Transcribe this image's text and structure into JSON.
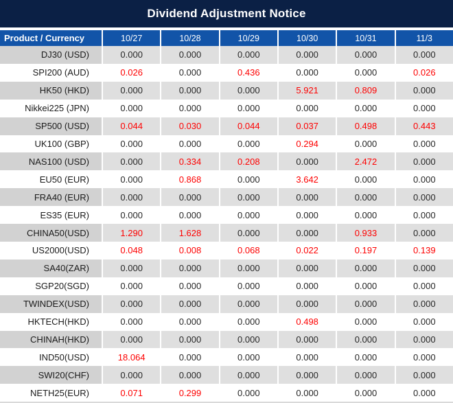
{
  "title": "Dividend Adjustment Notice",
  "colors": {
    "title_bar_bg": "#0b2045",
    "header_bg": "#1254a8",
    "stripe_label_col": "#d2d2d2",
    "stripe_value_cells": "#dfdfdf",
    "value_text": "#262626",
    "nonzero_value_red": "#fe0000",
    "header_text": "#ffffff"
  },
  "table": {
    "header": {
      "product_col": "Product / Currency",
      "dates": [
        "10/27",
        "10/28",
        "10/29",
        "10/30",
        "10/31",
        "11/3"
      ]
    },
    "rows": [
      {
        "product": "DJ30 (USD)",
        "values": [
          "0.000",
          "0.000",
          "0.000",
          "0.000",
          "0.000",
          "0.000"
        ]
      },
      {
        "product": "SPI200 (AUD)",
        "values": [
          "0.026",
          "0.000",
          "0.436",
          "0.000",
          "0.000",
          "0.026"
        ]
      },
      {
        "product": "HK50 (HKD)",
        "values": [
          "0.000",
          "0.000",
          "0.000",
          "5.921",
          "0.809",
          "0.000"
        ]
      },
      {
        "product": "Nikkei225 (JPN)",
        "values": [
          "0.000",
          "0.000",
          "0.000",
          "0.000",
          "0.000",
          "0.000"
        ]
      },
      {
        "product": "SP500 (USD)",
        "values": [
          "0.044",
          "0.030",
          "0.044",
          "0.037",
          "0.498",
          "0.443"
        ]
      },
      {
        "product": "UK100 (GBP)",
        "values": [
          "0.000",
          "0.000",
          "0.000",
          "0.294",
          "0.000",
          "0.000"
        ]
      },
      {
        "product": "NAS100 (USD)",
        "values": [
          "0.000",
          "0.334",
          "0.208",
          "0.000",
          "2.472",
          "0.000"
        ]
      },
      {
        "product": "EU50 (EUR)",
        "values": [
          "0.000",
          "0.868",
          "0.000",
          "3.642",
          "0.000",
          "0.000"
        ]
      },
      {
        "product": "FRA40 (EUR)",
        "values": [
          "0.000",
          "0.000",
          "0.000",
          "0.000",
          "0.000",
          "0.000"
        ]
      },
      {
        "product": "ES35 (EUR)",
        "values": [
          "0.000",
          "0.000",
          "0.000",
          "0.000",
          "0.000",
          "0.000"
        ]
      },
      {
        "product": "CHINA50(USD)",
        "values": [
          "1.290",
          "1.628",
          "0.000",
          "0.000",
          "0.933",
          "0.000"
        ]
      },
      {
        "product": "US2000(USD)",
        "values": [
          "0.048",
          "0.008",
          "0.068",
          "0.022",
          "0.197",
          "0.139"
        ]
      },
      {
        "product": "SA40(ZAR)",
        "values": [
          "0.000",
          "0.000",
          "0.000",
          "0.000",
          "0.000",
          "0.000"
        ]
      },
      {
        "product": "SGP20(SGD)",
        "values": [
          "0.000",
          "0.000",
          "0.000",
          "0.000",
          "0.000",
          "0.000"
        ]
      },
      {
        "product": "TWINDEX(USD)",
        "values": [
          "0.000",
          "0.000",
          "0.000",
          "0.000",
          "0.000",
          "0.000"
        ]
      },
      {
        "product": "HKTECH(HKD)",
        "values": [
          "0.000",
          "0.000",
          "0.000",
          "0.498",
          "0.000",
          "0.000"
        ]
      },
      {
        "product": "CHINAH(HKD)",
        "values": [
          "0.000",
          "0.000",
          "0.000",
          "0.000",
          "0.000",
          "0.000"
        ]
      },
      {
        "product": "IND50(USD)",
        "values": [
          "18.064",
          "0.000",
          "0.000",
          "0.000",
          "0.000",
          "0.000"
        ]
      },
      {
        "product": "SWI20(CHF)",
        "values": [
          "0.000",
          "0.000",
          "0.000",
          "0.000",
          "0.000",
          "0.000"
        ]
      },
      {
        "product": "NETH25(EUR)",
        "values": [
          "0.071",
          "0.299",
          "0.000",
          "0.000",
          "0.000",
          "0.000"
        ]
      }
    ]
  }
}
